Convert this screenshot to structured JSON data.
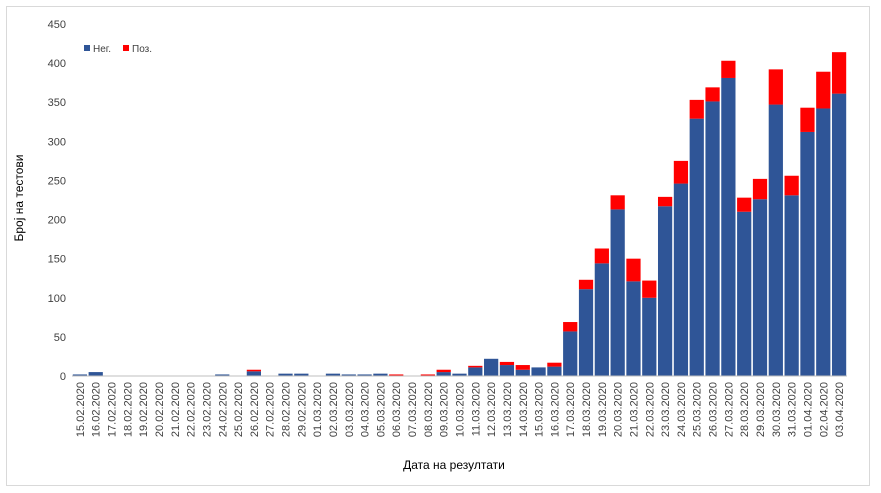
{
  "chart_data": {
    "type": "bar",
    "stacked": true,
    "xlabel": "Дата на резултати",
    "ylabel": "Број на тестови",
    "ylim": [
      0,
      450
    ],
    "yticks": [
      0,
      50,
      100,
      150,
      200,
      250,
      300,
      350,
      400,
      450
    ],
    "grid": false,
    "legend_position": "top-left",
    "categories": [
      "15.02.2020",
      "16.02.2020",
      "17.02.2020",
      "18.02.2020",
      "19.02.2020",
      "20.02.2020",
      "21.02.2020",
      "22.02.2020",
      "23.02.2020",
      "24.02.2020",
      "25.02.2020",
      "26.02.2020",
      "27.02.2020",
      "28.02.2020",
      "29.02.2020",
      "01.03.2020",
      "02.03.2020",
      "03.03.2020",
      "04.03.2020",
      "05.03.2020",
      "06.03.2020",
      "07.03.2020",
      "08.03.2020",
      "09.03.2020",
      "10.03.2020",
      "11.03.2020",
      "12.03.2020",
      "13.03.2020",
      "14.03.2020",
      "15.03.2020",
      "16.03.2020",
      "17.03.2020",
      "18.03.2020",
      "19.03.2020",
      "20.03.2020",
      "21.03.2020",
      "22.03.2020",
      "23.03.2020",
      "24.03.2020",
      "25.03.2020",
      "26.03.2020",
      "27.03.2020",
      "28.03.2020",
      "29.03.2020",
      "30.03.2020",
      "31.03.2020",
      "01.04.2020",
      "02.04.2020",
      "03.04.2020"
    ],
    "series": [
      {
        "name": "Нег.",
        "color": "#2f5597",
        "values": [
          2,
          5,
          0,
          0,
          0,
          0,
          0,
          0,
          0,
          2,
          0,
          6,
          0,
          3,
          3,
          0,
          3,
          2,
          2,
          3,
          0,
          0,
          0,
          5,
          3,
          11,
          22,
          14,
          8,
          11,
          12,
          57,
          111,
          144,
          213,
          121,
          100,
          217,
          246,
          329,
          351,
          381,
          210,
          226,
          347,
          231,
          312,
          342,
          361
        ]
      },
      {
        "name": "Поз.",
        "color": "#ff0000",
        "values": [
          0,
          0,
          0,
          0,
          0,
          0,
          0,
          0,
          0,
          0,
          0,
          2,
          0,
          0,
          0,
          0,
          0,
          0,
          0,
          0,
          2,
          0,
          2,
          3,
          0,
          2,
          0,
          4,
          6,
          0,
          5,
          12,
          12,
          19,
          18,
          29,
          22,
          12,
          29,
          24,
          18,
          22,
          18,
          26,
          45,
          25,
          31,
          47,
          53
        ]
      }
    ]
  }
}
